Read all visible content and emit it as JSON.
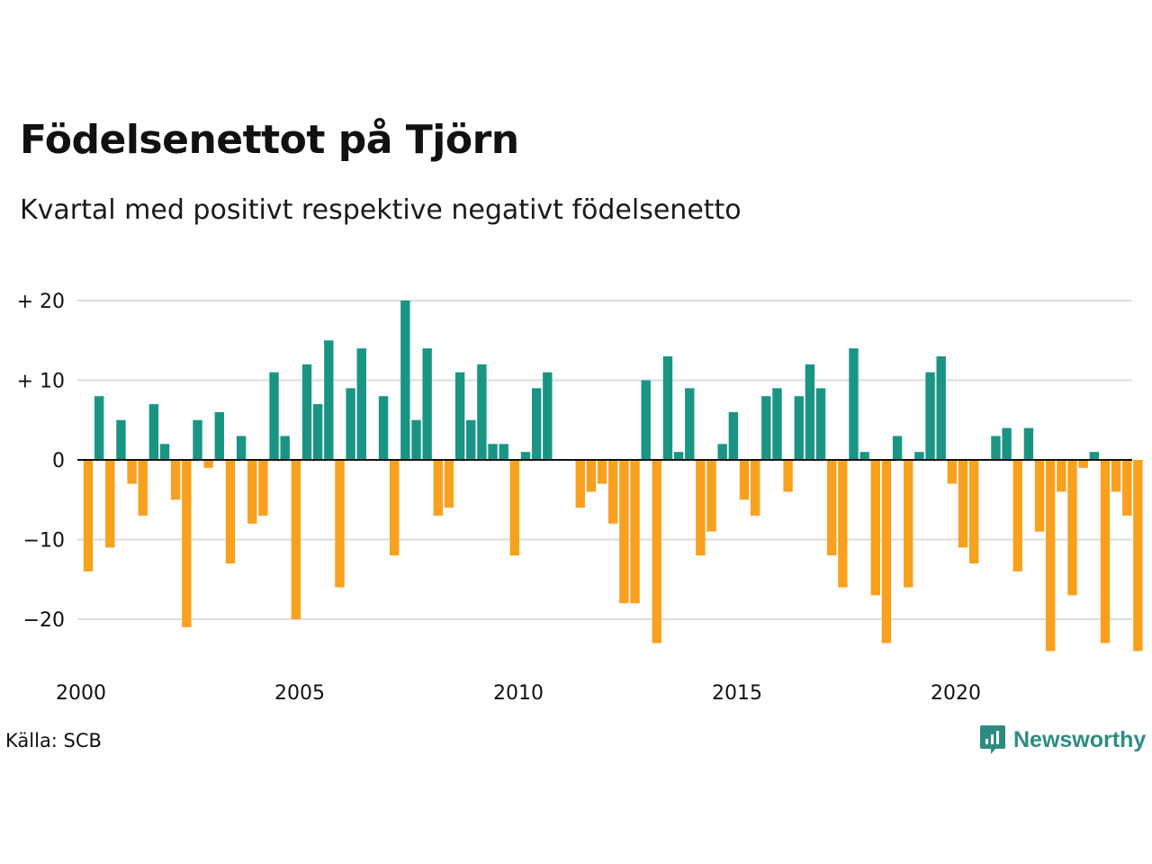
{
  "title": "Födelsenettot på Tjörn",
  "subtitle": "Kvartal med positivt respektive negativt födelsenetto",
  "source": "Källa: SCB",
  "brand": {
    "name": "Newsworthy",
    "icon": "newsworthy-logo-icon"
  },
  "colors": {
    "positive": "#1a9585",
    "negative": "#f9a01e",
    "grid": "#dddddd",
    "axis": "#111111"
  },
  "chart_data": {
    "type": "bar",
    "x_start": "2000 Q1",
    "x_ticks": [
      {
        "label": "2000",
        "year": 2000
      },
      {
        "label": "2005",
        "year": 2005
      },
      {
        "label": "2010",
        "year": 2010
      },
      {
        "label": "2015",
        "year": 2015
      },
      {
        "label": "2020",
        "year": 2020
      }
    ],
    "y_ticks": [
      {
        "label": "+ 20",
        "value": 20
      },
      {
        "label": "+ 10",
        "value": 10
      },
      {
        "label": "0",
        "value": 0
      },
      {
        "label": "−10",
        "value": -10
      },
      {
        "label": "−20",
        "value": -20
      }
    ],
    "ylim": [
      -26,
      20
    ],
    "grid": true,
    "values": [
      -14,
      8,
      -11,
      5,
      -3,
      -7,
      7,
      2,
      -5,
      -21,
      5,
      -1,
      6,
      -13,
      3,
      -8,
      -7,
      11,
      3,
      -20,
      12,
      7,
      15,
      -16,
      9,
      14,
      0,
      8,
      -12,
      20,
      5,
      14,
      -7,
      -6,
      11,
      5,
      12,
      2,
      2,
      -12,
      1,
      9,
      11,
      0,
      0,
      -6,
      -4,
      -3,
      -8,
      -18,
      -18,
      10,
      -23,
      13,
      1,
      9,
      -12,
      -9,
      2,
      6,
      -5,
      -7,
      8,
      9,
      -4,
      8,
      12,
      9,
      -12,
      -16,
      14,
      1,
      -17,
      -23,
      3,
      -16,
      1,
      11,
      13,
      -3,
      -11,
      -13,
      0,
      3,
      4,
      -14,
      4,
      -9,
      -24,
      -4,
      -17,
      -1,
      1,
      -23,
      -4,
      -7,
      -24
    ]
  }
}
